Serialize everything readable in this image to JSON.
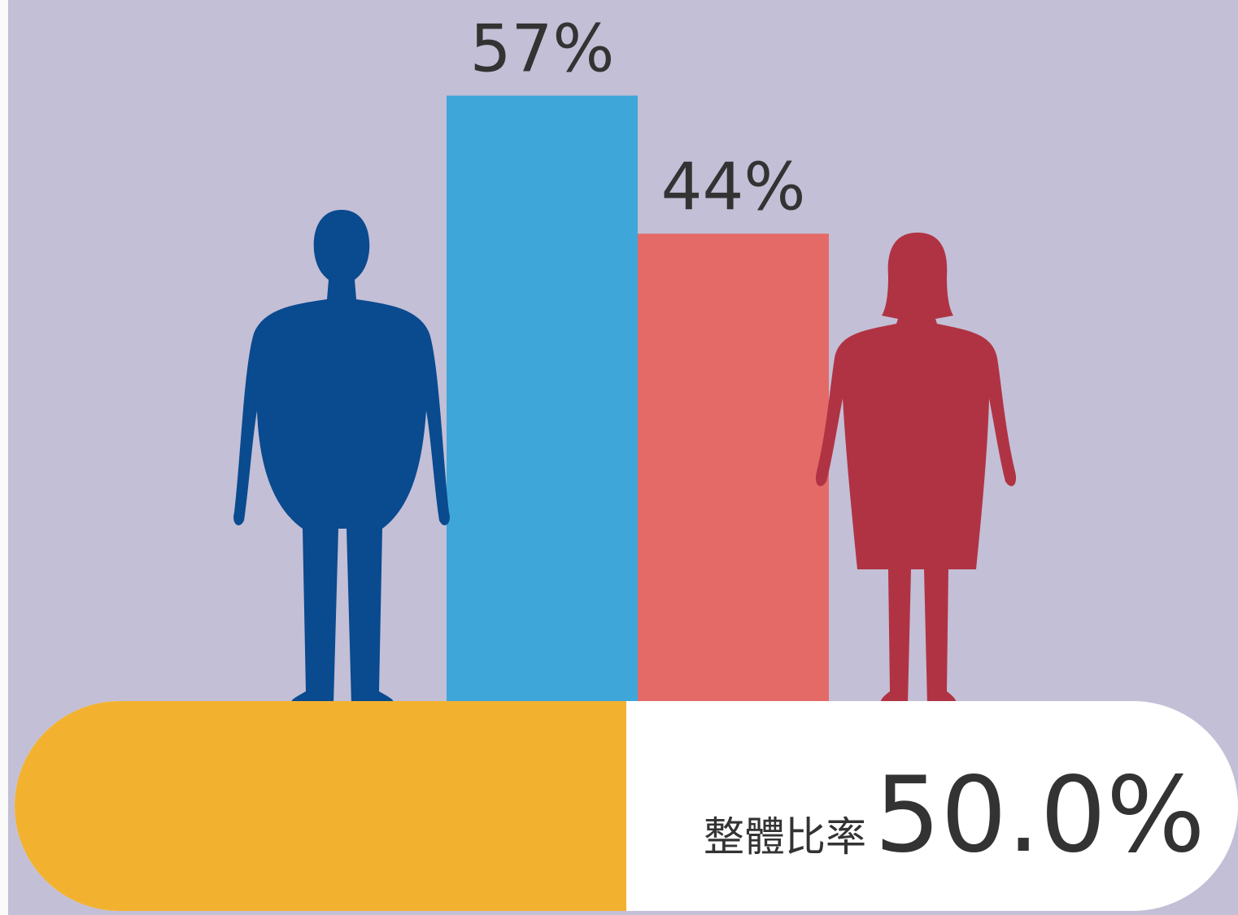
{
  "chart_data": {
    "type": "bar",
    "categories": [
      null,
      null
    ],
    "values": [
      57,
      44
    ],
    "value_labels": [
      "57%",
      "44%"
    ],
    "colors": [
      "#3fa6da",
      "#e46a68"
    ],
    "ylim": [
      0,
      66
    ],
    "overall": {
      "label": "整體比率",
      "value": 50,
      "value_label": "50.0%",
      "color": "#f2b230",
      "range": [
        0,
        100
      ]
    }
  }
}
